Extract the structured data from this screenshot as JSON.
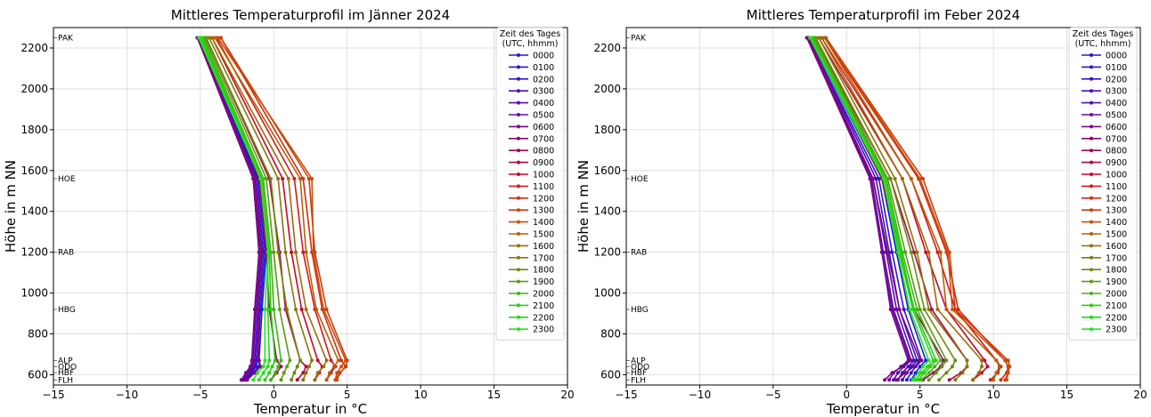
{
  "chart_data": [
    {
      "type": "line",
      "title": "Mittleres Temperaturprofil im Jänner 2024",
      "xlabel": "Temperatur in °C",
      "ylabel": "Höhe in m NN",
      "xlim": [
        -15,
        20
      ],
      "ylim": [
        550,
        2300
      ],
      "xticks": [
        "−15",
        "−10",
        "−5",
        "0",
        "5",
        "10",
        "15",
        "20"
      ],
      "yticks": [
        "600",
        "800",
        "1000",
        "1200",
        "1400",
        "1600",
        "1800",
        "2000",
        "2200"
      ],
      "grid": true,
      "legend": {
        "title_line1": "Zeit des Tages",
        "title_line2": "(UTC, hhmm)",
        "position": "top-right"
      },
      "stations": [
        {
          "name": "PAK",
          "height": 2250
        },
        {
          "name": "HOE",
          "height": 1560
        },
        {
          "name": "RAB",
          "height": 1200
        },
        {
          "name": "HBG",
          "height": 920
        },
        {
          "name": "ALP",
          "height": 670
        },
        {
          "name": "ODO",
          "height": 640
        },
        {
          "name": "HBF",
          "height": 610
        },
        {
          "name": "FLH",
          "height": 575
        }
      ],
      "series": [
        {
          "name": "0000",
          "color": "#1a1ad6",
          "values": [
            -5.2,
            -1.0,
            -0.5,
            -0.8,
            -1.0,
            -1.0,
            -1.4,
            -1.8
          ]
        },
        {
          "name": "0100",
          "color": "#2a14d0",
          "values": [
            -5.2,
            -1.1,
            -0.6,
            -0.9,
            -1.1,
            -1.2,
            -1.5,
            -1.9
          ]
        },
        {
          "name": "0200",
          "color": "#3c10c6",
          "values": [
            -5.2,
            -1.2,
            -0.7,
            -1.0,
            -1.2,
            -1.3,
            -1.6,
            -2.0
          ]
        },
        {
          "name": "0300",
          "color": "#4c0cbc",
          "values": [
            -5.2,
            -1.3,
            -0.8,
            -1.1,
            -1.3,
            -1.4,
            -1.7,
            -2.0
          ]
        },
        {
          "name": "0400",
          "color": "#5a0aae",
          "values": [
            -5.2,
            -1.3,
            -0.9,
            -1.2,
            -1.4,
            -1.5,
            -1.8,
            -2.1
          ]
        },
        {
          "name": "0500",
          "color": "#6a089c",
          "values": [
            -5.2,
            -1.4,
            -1.0,
            -1.3,
            -1.5,
            -1.6,
            -1.9,
            -2.2
          ]
        },
        {
          "name": "0600",
          "color": "#7a0688",
          "values": [
            -5.2,
            -1.4,
            -1.0,
            -1.3,
            -1.4,
            -1.5,
            -1.8,
            -2.2
          ]
        },
        {
          "name": "0700",
          "color": "#8a0672",
          "values": [
            -5.1,
            -1.3,
            -0.9,
            -1.1,
            -1.0,
            -0.9,
            -1.3,
            -1.8
          ]
        },
        {
          "name": "0800",
          "color": "#9c065c",
          "values": [
            -4.9,
            -1.0,
            -0.5,
            -0.3,
            0.2,
            0.5,
            0.2,
            -0.2
          ]
        },
        {
          "name": "0900",
          "color": "#b00644",
          "values": [
            -4.6,
            -0.3,
            0.4,
            0.8,
            1.8,
            2.2,
            2.0,
            1.6
          ]
        },
        {
          "name": "1000",
          "color": "#c8062a",
          "values": [
            -4.2,
            0.6,
            1.2,
            1.9,
            3.0,
            3.3,
            3.1,
            2.8
          ]
        },
        {
          "name": "1100",
          "color": "#d41a18",
          "values": [
            -3.9,
            1.4,
            2.0,
            2.8,
            3.9,
            4.2,
            3.9,
            3.6
          ]
        },
        {
          "name": "1200",
          "color": "#d42c10",
          "values": [
            -3.6,
            2.0,
            2.6,
            3.3,
            4.6,
            4.9,
            4.5,
            4.2
          ]
        },
        {
          "name": "1300",
          "color": "#d03c0c",
          "values": [
            -3.6,
            2.4,
            2.8,
            3.6,
            5.0,
            4.9,
            4.5,
            4.3
          ]
        },
        {
          "name": "1400",
          "color": "#c8500a",
          "values": [
            -3.8,
            2.6,
            2.7,
            3.4,
            4.9,
            4.6,
            4.3,
            4.2
          ]
        },
        {
          "name": "1500",
          "color": "#b8600a",
          "values": [
            -4.0,
            1.8,
            2.2,
            2.9,
            4.4,
            4.1,
            3.8,
            3.6
          ]
        },
        {
          "name": "1600",
          "color": "#a06a0c",
          "values": [
            -4.2,
            1.0,
            1.5,
            2.2,
            3.6,
            3.4,
            3.0,
            2.8
          ]
        },
        {
          "name": "1700",
          "color": "#86780e",
          "values": [
            -4.4,
            0.3,
            0.8,
            1.5,
            2.6,
            2.4,
            2.2,
            2.0
          ]
        },
        {
          "name": "1800",
          "color": "#6e8a10",
          "values": [
            -4.6,
            -0.2,
            0.3,
            0.9,
            1.8,
            1.6,
            1.4,
            1.2
          ]
        },
        {
          "name": "1900",
          "color": "#5a9c12",
          "values": [
            -4.7,
            -0.5,
            0.0,
            0.4,
            1.1,
            0.9,
            0.7,
            0.5
          ]
        },
        {
          "name": "2000",
          "color": "#44b414",
          "values": [
            -4.8,
            -0.7,
            -0.2,
            0.0,
            0.5,
            0.3,
            0.1,
            -0.2
          ]
        },
        {
          "name": "2100",
          "color": "#30c816",
          "values": [
            -4.9,
            -0.8,
            -0.3,
            -0.2,
            0.1,
            -0.1,
            -0.3,
            -0.6
          ]
        },
        {
          "name": "2200",
          "color": "#24d818",
          "values": [
            -5.0,
            -0.9,
            -0.4,
            -0.4,
            -0.3,
            -0.4,
            -0.7,
            -1.0
          ]
        },
        {
          "name": "2300",
          "color": "#1ee81e",
          "values": [
            -5.1,
            -0.9,
            -0.4,
            -0.6,
            -0.6,
            -0.7,
            -1.1,
            -1.4
          ]
        }
      ]
    },
    {
      "type": "line",
      "title": "Mittleres Temperaturprofil im Feber 2024",
      "xlabel": "Temperatur in °C",
      "ylabel": "Höhe in m NN",
      "xlim": [
        -15,
        20
      ],
      "ylim": [
        550,
        2300
      ],
      "xticks": [
        "−15",
        "−10",
        "−5",
        "0",
        "5",
        "10",
        "15",
        "20"
      ],
      "yticks": [
        "600",
        "800",
        "1000",
        "1200",
        "1400",
        "1600",
        "1800",
        "2000",
        "2200"
      ],
      "grid": true,
      "legend": {
        "title_line1": "Zeit des Tages",
        "title_line2": "(UTC, hhmm)",
        "position": "top-right"
      },
      "stations": [
        {
          "name": "PAK",
          "height": 2250
        },
        {
          "name": "HOE",
          "height": 1560
        },
        {
          "name": "RAB",
          "height": 1200
        },
        {
          "name": "HBG",
          "height": 920
        },
        {
          "name": "ALP",
          "height": 670
        },
        {
          "name": "ODO",
          "height": 640
        },
        {
          "name": "HBF",
          "height": 610
        },
        {
          "name": "FLH",
          "height": 575
        }
      ],
      "series": [
        {
          "name": "0000",
          "color": "#1a1ad6",
          "values": [
            -2.5,
            2.4,
            3.4,
            4.2,
            5.4,
            5.0,
            4.7,
            4.4
          ]
        },
        {
          "name": "0100",
          "color": "#2a14d0",
          "values": [
            -2.6,
            2.2,
            3.1,
            3.9,
            5.1,
            4.7,
            4.4,
            4.1
          ]
        },
        {
          "name": "0200",
          "color": "#3c10c6",
          "values": [
            -2.6,
            2.0,
            2.9,
            3.6,
            4.8,
            4.4,
            4.1,
            3.8
          ]
        },
        {
          "name": "0300",
          "color": "#4c0cbc",
          "values": [
            -2.7,
            1.8,
            2.7,
            3.4,
            4.6,
            4.2,
            3.8,
            3.5
          ]
        },
        {
          "name": "0400",
          "color": "#5a0aae",
          "values": [
            -2.7,
            1.7,
            2.5,
            3.2,
            4.4,
            3.9,
            3.5,
            3.2
          ]
        },
        {
          "name": "0500",
          "color": "#6a089c",
          "values": [
            -2.7,
            1.6,
            2.4,
            3.0,
            4.2,
            3.7,
            3.2,
            2.9
          ]
        },
        {
          "name": "0600",
          "color": "#7a0688",
          "values": [
            -2.7,
            1.6,
            2.4,
            3.1,
            4.3,
            3.8,
            3.1,
            2.6
          ]
        },
        {
          "name": "0700",
          "color": "#8a0672",
          "values": [
            -2.6,
            1.8,
            2.8,
            3.6,
            5.0,
            4.6,
            4.0,
            3.4
          ]
        },
        {
          "name": "0800",
          "color": "#9c065c",
          "values": [
            -2.4,
            2.4,
            3.6,
            4.6,
            6.6,
            6.4,
            5.9,
            5.2
          ]
        },
        {
          "name": "0900",
          "color": "#b00644",
          "values": [
            -2.2,
            3.0,
            4.6,
            5.8,
            8.2,
            8.2,
            7.8,
            7.0
          ]
        },
        {
          "name": "1000",
          "color": "#c8062a",
          "values": [
            -1.9,
            3.8,
            5.4,
            6.8,
            9.4,
            9.6,
            9.2,
            8.6
          ]
        },
        {
          "name": "1100",
          "color": "#d41a18",
          "values": [
            -1.7,
            4.4,
            6.2,
            7.4,
            10.2,
            10.5,
            10.3,
            9.8
          ]
        },
        {
          "name": "1200",
          "color": "#d42c10",
          "values": [
            -1.5,
            4.9,
            6.8,
            7.6,
            10.8,
            11.0,
            10.9,
            10.5
          ]
        },
        {
          "name": "1300",
          "color": "#d03c0c",
          "values": [
            -1.4,
            5.2,
            7.0,
            7.4,
            11.0,
            11.1,
            11.0,
            10.8
          ]
        },
        {
          "name": "1400",
          "color": "#c8500a",
          "values": [
            -1.4,
            5.0,
            6.9,
            7.2,
            10.8,
            11.0,
            11.0,
            10.9
          ]
        },
        {
          "name": "1500",
          "color": "#b8600a",
          "values": [
            -1.5,
            4.4,
            6.4,
            6.8,
            10.2,
            10.4,
            10.2,
            10.0
          ]
        },
        {
          "name": "1600",
          "color": "#a06a0c",
          "values": [
            -1.7,
            3.8,
            5.6,
            6.2,
            9.2,
            9.2,
            9.0,
            8.6
          ]
        },
        {
          "name": "1700",
          "color": "#86780e",
          "values": [
            -1.9,
            3.3,
            4.8,
            5.6,
            8.2,
            8.2,
            7.9,
            7.4
          ]
        },
        {
          "name": "1800",
          "color": "#6e8a10",
          "values": [
            -2.1,
            3.0,
            4.4,
            5.3,
            7.4,
            7.2,
            6.8,
            6.3
          ]
        },
        {
          "name": "1900",
          "color": "#5a9c12",
          "values": [
            -2.2,
            2.8,
            4.0,
            5.0,
            6.8,
            6.5,
            6.1,
            5.6
          ]
        },
        {
          "name": "2000",
          "color": "#44b414",
          "values": [
            -2.3,
            2.7,
            3.8,
            4.8,
            6.4,
            6.0,
            5.6,
            5.1
          ]
        },
        {
          "name": "2100",
          "color": "#30c816",
          "values": [
            -2.4,
            2.6,
            3.7,
            4.6,
            6.1,
            5.7,
            5.3,
            4.9
          ]
        },
        {
          "name": "2200",
          "color": "#24d818",
          "values": [
            -2.4,
            2.6,
            3.6,
            4.5,
            5.9,
            5.5,
            5.1,
            4.7
          ]
        },
        {
          "name": "2300",
          "color": "#1ee81e",
          "values": [
            -2.5,
            2.5,
            3.5,
            4.3,
            5.6,
            5.2,
            4.9,
            4.5
          ]
        }
      ]
    }
  ]
}
